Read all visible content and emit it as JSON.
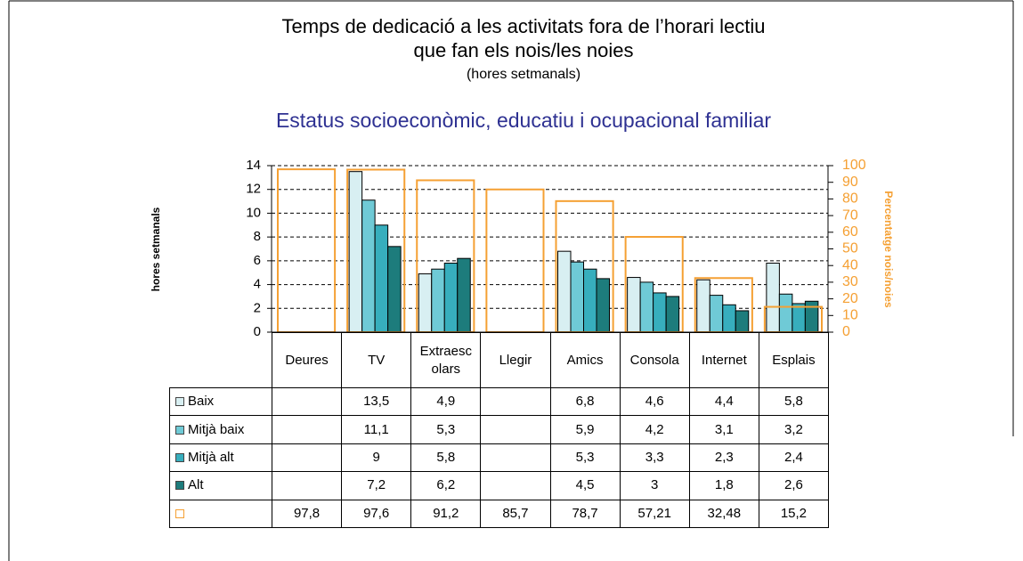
{
  "chart_data": {
    "type": "bar",
    "title": [
      "Temps de dedicació a les activitats fora de l’horari lectiu",
      "que fan els nois/les noies"
    ],
    "subtitle": "(hores setmanals)",
    "heading": "Estatus socioeconòmic, educatiu i ocupacional familiar",
    "y_label": "hores setmanals",
    "y2_label": "Percentatge nois/noies",
    "categories": [
      "Deures",
      "TV",
      "Extraescolars",
      "Llegir",
      "Amics",
      "Consola",
      "Internet",
      "Esplais"
    ],
    "ylim": [
      0,
      14
    ],
    "yticks": [
      0,
      2,
      4,
      6,
      8,
      10,
      12,
      14
    ],
    "y2lim": [
      0,
      100
    ],
    "y2ticks": [
      0,
      10,
      20,
      30,
      40,
      50,
      60,
      70,
      80,
      90,
      100
    ],
    "grid": true,
    "series": [
      {
        "name": "Baix",
        "color": "#d8eff2",
        "values": [
          null,
          13.5,
          4.9,
          null,
          6.8,
          4.6,
          4.4,
          5.8
        ],
        "value_labels": [
          null,
          "13,5",
          "4,9",
          null,
          "6,8",
          "4,6",
          "4,4",
          "5,8"
        ]
      },
      {
        "name": "Mitjà baix",
        "color": "#6fcad6",
        "values": [
          null,
          11.1,
          5.3,
          null,
          5.9,
          4.2,
          3.1,
          3.2
        ],
        "value_labels": [
          null,
          "11,1",
          "5,3",
          null,
          "5,9",
          "4,2",
          "3,1",
          "3,2"
        ]
      },
      {
        "name": "Mitjà alt",
        "color": "#37aebd",
        "values": [
          null,
          9,
          5.8,
          null,
          5.3,
          3.3,
          2.3,
          2.4
        ],
        "value_labels": [
          null,
          "9",
          "5,8",
          null,
          "5,3",
          "3,3",
          "2,3",
          "2,4"
        ]
      },
      {
        "name": "Alt",
        "color": "#1d7c7c",
        "values": [
          null,
          7.2,
          6.2,
          null,
          4.5,
          3,
          1.8,
          2.6
        ],
        "value_labels": [
          null,
          "7,2",
          "6,2",
          null,
          "4,5",
          "3",
          "1,8",
          "2,6"
        ]
      },
      {
        "color": "#f5a033",
        "axis": "y2",
        "values": [
          97.8,
          97.6,
          91.2,
          85.7,
          78.7,
          57.21,
          32.48,
          15.2
        ],
        "value_labels": [
          "97,8",
          "97,6",
          "91,2",
          "85,7",
          "78,7",
          "57,21",
          "32,48",
          "15,2"
        ]
      }
    ]
  }
}
